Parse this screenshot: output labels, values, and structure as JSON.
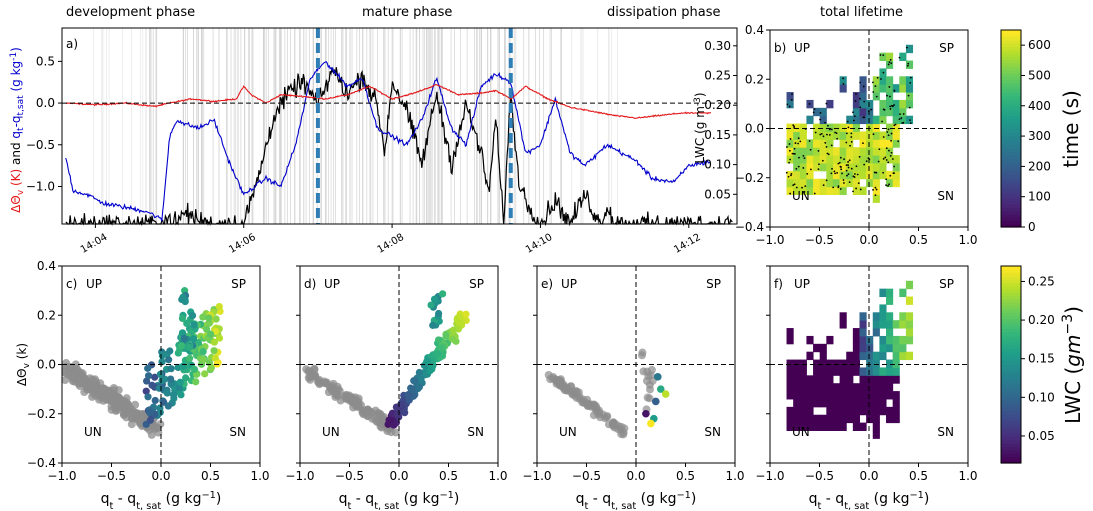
{
  "phase_titles": {
    "development": "development phase",
    "mature": "mature phase",
    "dissipation": "dissipation phase",
    "total": "total lifetime"
  },
  "colors": {
    "theta": "#e41a1c",
    "q": "#0000cc",
    "lwc": "#000000",
    "dashed_vline": "#2f7fb6",
    "grey_points": "#8c8c8c"
  },
  "chart_data": [
    {
      "panel_label": "a)",
      "type": "line",
      "ylabel_parts": [
        "ΔΘ",
        "v",
        " (K)",
        " and ",
        "q",
        "t",
        "-q",
        "t,sat",
        " (g kg",
        "-1",
        ")"
      ],
      "y2label": "LWC (g m",
      "y2label_sup": "-3",
      "y2label_end": ")",
      "x_ticks": [
        "14:04",
        "14:06",
        "14:08",
        "14:10",
        "14:12"
      ],
      "x_tick_minutes": [
        4,
        6,
        8,
        10,
        12
      ],
      "x_range_minutes": [
        3.55,
        12.65
      ],
      "ylim": [
        -1.45,
        0.9
      ],
      "yticks": [
        -1.0,
        -0.5,
        0.0,
        0.5
      ],
      "y2lim": [
        0.0,
        0.33
      ],
      "y2ticks": [
        0.05,
        0.1,
        0.15,
        0.2,
        0.25,
        0.3
      ],
      "dashed_vlines_minutes": [
        7.0,
        9.6
      ],
      "series": [
        {
          "key": "theta",
          "x": [
            3.6,
            4.0,
            4.4,
            4.8,
            5.0,
            5.3,
            5.6,
            5.9,
            6.0,
            6.1,
            6.3,
            6.5,
            6.8,
            7.1,
            7.4,
            7.7,
            8.0,
            8.3,
            8.6,
            8.9,
            9.2,
            9.4,
            9.6,
            9.8,
            10.1,
            10.4,
            10.7,
            11.0,
            11.3,
            11.6,
            11.9,
            12.3
          ],
          "y": [
            0.0,
            -0.02,
            0.0,
            -0.04,
            0.0,
            0.05,
            0.02,
            0.05,
            0.2,
            0.1,
            0.0,
            0.1,
            0.08,
            0.05,
            0.1,
            0.2,
            0.05,
            0.12,
            0.22,
            0.1,
            0.12,
            0.15,
            0.05,
            0.2,
            0.05,
            -0.05,
            -0.1,
            -0.15,
            -0.18,
            -0.15,
            -0.12,
            -0.12
          ]
        },
        {
          "key": "q",
          "x": [
            3.6,
            3.7,
            3.9,
            4.1,
            4.4,
            4.7,
            4.9,
            5.0,
            5.1,
            5.2,
            5.4,
            5.6,
            5.8,
            5.9,
            6.0,
            6.3,
            6.5,
            6.7,
            6.9,
            7.1,
            7.4,
            7.6,
            7.8,
            8.0,
            8.2,
            8.4,
            8.6,
            8.8,
            9.0,
            9.2,
            9.4,
            9.6,
            9.8,
            10.0,
            10.2,
            10.4,
            10.6,
            10.9,
            11.1,
            11.3,
            11.5,
            11.8,
            12.0,
            12.3
          ],
          "y": [
            -0.65,
            -1.05,
            -1.1,
            -1.2,
            -1.25,
            -1.3,
            -1.4,
            -0.4,
            -0.2,
            -0.25,
            -0.3,
            -0.2,
            -0.7,
            -0.9,
            -1.1,
            -0.9,
            -1.0,
            -0.5,
            0.3,
            0.5,
            0.2,
            0.3,
            -0.3,
            -0.4,
            -0.5,
            -0.2,
            0.3,
            -0.3,
            -0.5,
            0.2,
            0.35,
            0.25,
            -0.6,
            -0.5,
            0.05,
            -0.6,
            -0.75,
            -0.5,
            -0.6,
            -0.7,
            -0.9,
            -0.95,
            -0.75,
            -0.7
          ]
        },
        {
          "key": "lwc",
          "x": [
            3.6,
            4.9,
            5.0,
            5.1,
            5.2,
            5.5,
            6.0,
            6.2,
            6.4,
            6.6,
            6.8,
            7.0,
            7.2,
            7.4,
            7.6,
            7.8,
            7.9,
            8.0,
            8.2,
            8.4,
            8.6,
            8.8,
            9.0,
            9.2,
            9.3,
            9.4,
            9.5,
            9.6,
            9.7,
            9.8,
            10.0,
            10.2,
            10.4,
            10.6,
            10.8,
            10.9,
            11.0,
            12.6
          ],
          "y": [
            0.0,
            0.0,
            0.01,
            0.0,
            0.02,
            0.0,
            0.0,
            0.08,
            0.18,
            0.22,
            0.24,
            0.2,
            0.26,
            0.22,
            0.25,
            0.2,
            0.12,
            0.24,
            0.19,
            0.1,
            0.22,
            0.1,
            0.2,
            0.12,
            0.05,
            0.18,
            0.0,
            0.22,
            0.08,
            0.04,
            0.0,
            0.04,
            0.0,
            0.05,
            0.0,
            0.03,
            0.0,
            0.0
          ]
        }
      ]
    },
    {
      "panel_label": "b)",
      "type": "heatmap",
      "x_range": [
        -1.0,
        1.0
      ],
      "y_range": [
        -0.4,
        0.4
      ],
      "xticks": [
        -1.0,
        -0.5,
        0.0,
        0.5,
        1.0
      ],
      "yticks": [
        -0.4,
        -0.2,
        0.0,
        0.2,
        0.4
      ],
      "quadrant_labels": {
        "up": "UP",
        "sp": "SP",
        "un": "UN",
        "sn": "SN"
      },
      "colorbar": {
        "label": "time (s)",
        "range": [
          0,
          650
        ],
        "ticks": [
          0,
          100,
          200,
          300,
          400,
          500,
          600
        ],
        "colormap": "viridis"
      }
    },
    {
      "panel_label": "c)",
      "type": "scatter",
      "xlabel_parts": [
        "q",
        "t",
        " - q",
        "t, sat",
        " (g kg",
        "−1",
        ")"
      ],
      "ylabel_parts": [
        "ΔΘ",
        "v",
        " (k)"
      ],
      "x_range": [
        -1.0,
        1.0
      ],
      "y_range": [
        -0.4,
        0.4
      ],
      "xticks": [
        -1.0,
        -0.5,
        0.0,
        0.5,
        1.0
      ],
      "yticks": [
        -0.4,
        -0.2,
        0.0,
        0.2,
        0.4
      ],
      "quadrant_labels": {
        "up": "UP",
        "sp": "SP",
        "un": "UN",
        "sn": "SN"
      }
    },
    {
      "panel_label": "d)",
      "type": "scatter",
      "xlabel_parts": [
        "q",
        "t",
        " - q",
        "t, sat",
        " (g kg",
        "−1",
        ")"
      ],
      "x_range": [
        -1.0,
        1.0
      ],
      "y_range": [
        -0.4,
        0.4
      ],
      "xticks": [
        -1.0,
        -0.5,
        0.0,
        0.5,
        1.0
      ],
      "quadrant_labels": {
        "up": "UP",
        "sp": "SP",
        "un": "UN",
        "sn": "SN"
      }
    },
    {
      "panel_label": "e)",
      "type": "scatter",
      "xlabel_parts": [
        "q",
        "t",
        " - q",
        "t, sat",
        " (g kg",
        "−1",
        ")"
      ],
      "x_range": [
        -1.0,
        1.0
      ],
      "y_range": [
        -0.4,
        0.4
      ],
      "xticks": [
        -1.0,
        -0.5,
        0.0,
        0.5,
        1.0
      ],
      "quadrant_labels": {
        "up": "UP",
        "sp": "SP",
        "un": "UN",
        "sn": "SN"
      }
    },
    {
      "panel_label": "f)",
      "type": "heatmap",
      "xlabel_parts": [
        "q",
        "t",
        " - q",
        "t, sat",
        " (g kg",
        "−1",
        ")"
      ],
      "x_range": [
        -1.0,
        1.0
      ],
      "y_range": [
        -0.4,
        0.4
      ],
      "xticks": [
        -1.0,
        -0.5,
        0.0,
        0.5,
        1.0
      ],
      "quadrant_labels": {
        "up": "UP",
        "sp": "SP",
        "un": "UN",
        "sn": "SN"
      },
      "colorbar": {
        "label_parts": [
          "LWC (",
          "gm",
          "−3",
          ")"
        ],
        "range": [
          0.015,
          0.27
        ],
        "ticks": [
          0.05,
          0.1,
          0.15,
          0.2,
          0.25
        ],
        "colormap": "viridis"
      }
    }
  ]
}
